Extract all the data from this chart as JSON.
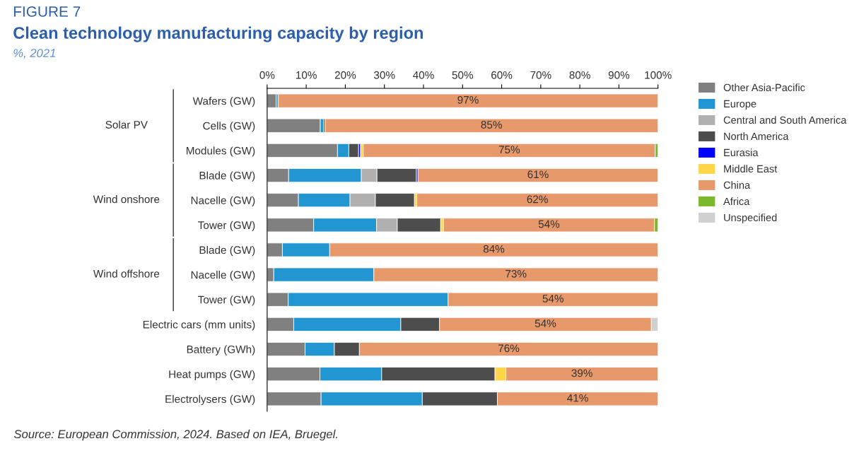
{
  "chart_data": {
    "type": "bar",
    "orientation": "horizontal",
    "stacked": true,
    "title": "Clean technology manufacturing capacity by region",
    "subtitle": "%, 2021",
    "annotations": [
      "FIGURE 7",
      "Solar PV",
      "Wind onshore",
      "Wind offshore",
      "Source: European Commission, 2024. Based on IEA, Bruegel."
    ],
    "categories": [
      "Wafers (GW)",
      "Cells (GW)",
      "Modules (GW)",
      "Blade (GW)",
      "Nacelle (GW)",
      "Tower (GW)",
      "Blade (GW)",
      "Nacelle (GW)",
      "Tower (GW)",
      "Electric cars (mm units)",
      "Battery (GWh)",
      "Heat pumps (GW)",
      "Electrolysers (GW)"
    ],
    "xlim": [
      0,
      100
    ],
    "xticks": [
      {
        "value": 0,
        "label": "0%"
      },
      {
        "value": 10,
        "label": "10%"
      },
      {
        "value": 20,
        "label": "20%"
      },
      {
        "value": 30,
        "label": "30%"
      },
      {
        "value": 40,
        "label": "40%"
      },
      {
        "value": 50,
        "label": "50%"
      },
      {
        "value": 60,
        "label": "60%"
      },
      {
        "value": 70,
        "label": "70%"
      },
      {
        "value": 80,
        "label": "80%"
      },
      {
        "value": 90,
        "label": "90%"
      },
      {
        "value": 100,
        "label": "100%"
      }
    ],
    "grid": false,
    "legend": "right",
    "series": [
      {
        "name": "Other Asia-Pacific",
        "color": "#808080",
        "values": [
          2.3,
          13.6,
          18.0,
          5.5,
          8.0,
          11.9,
          3.9,
          1.7,
          5.4,
          6.8,
          9.7,
          13.5,
          13.8
        ]
      },
      {
        "name": "Europe",
        "color": "#2196d0",
        "values": [
          0.5,
          0.8,
          2.9,
          18.6,
          13.2,
          16.1,
          12.1,
          25.6,
          40.9,
          27.4,
          7.5,
          15.8,
          25.9
        ]
      },
      {
        "name": "Central and South America",
        "color": "#b0b0b0",
        "values": [
          null,
          null,
          null,
          4.0,
          6.5,
          5.3,
          null,
          null,
          null,
          null,
          null,
          null,
          null
        ]
      },
      {
        "name": "North America",
        "color": "#4d4d4d",
        "values": [
          null,
          0.4,
          2.5,
          10.1,
          10.0,
          11.1,
          null,
          null,
          null,
          9.9,
          6.4,
          29.0,
          19.2
        ]
      },
      {
        "name": "Eurasia",
        "color": "#0000ff",
        "values": [
          null,
          null,
          0.5,
          0.4,
          null,
          null,
          null,
          null,
          null,
          null,
          null,
          null,
          null
        ]
      },
      {
        "name": "Middle East",
        "color": "#ffd54a",
        "values": [
          null,
          null,
          0.7,
          null,
          0.6,
          0.7,
          null,
          null,
          null,
          null,
          null,
          2.8,
          null
        ]
      },
      {
        "name": "China",
        "color": "#e8996b",
        "values": [
          97.2,
          85.2,
          74.7,
          61.4,
          61.7,
          54.0,
          84.0,
          72.7,
          53.7,
          54.2,
          76.4,
          38.9,
          41.1
        ],
        "value_labels": [
          "97%",
          "85%",
          "75%",
          "61%",
          "62%",
          "54%",
          "84%",
          "73%",
          "54%",
          "54%",
          "76%",
          "39%",
          "41%"
        ]
      },
      {
        "name": "Africa",
        "color": "#7cb82f",
        "values": [
          null,
          null,
          0.7,
          null,
          null,
          0.9,
          null,
          null,
          null,
          null,
          null,
          null,
          null
        ]
      },
      {
        "name": "Unspecified",
        "color": "#d0d0d0",
        "values": [
          null,
          null,
          null,
          null,
          null,
          null,
          null,
          null,
          null,
          1.7,
          null,
          null,
          null
        ]
      }
    ]
  }
}
